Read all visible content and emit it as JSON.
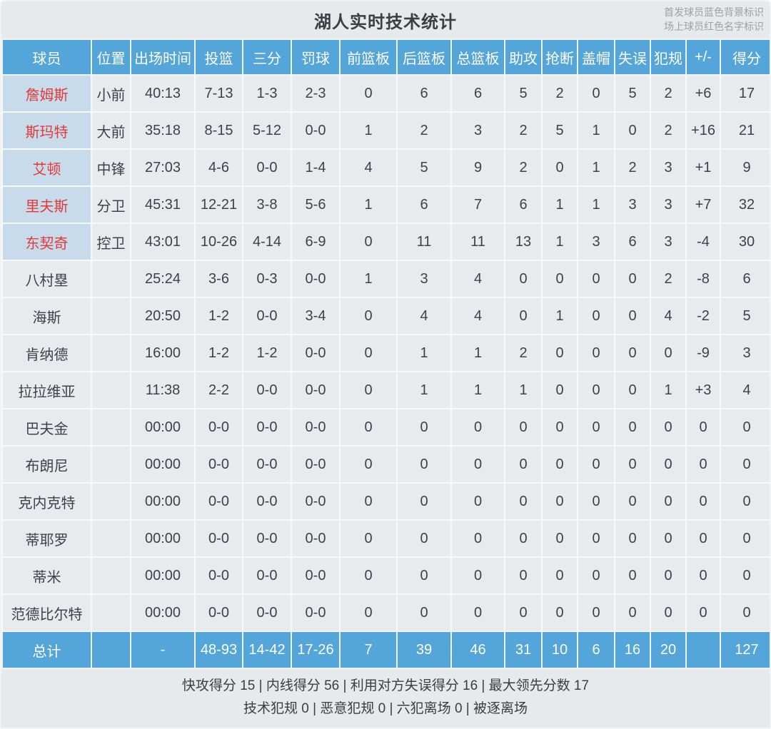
{
  "title": "湖人实时技术统计",
  "legend": {
    "line1": "首发球员蓝色背景标识",
    "line2": "场上球员红色名字标识"
  },
  "colors": {
    "header_blue": "#54a5da",
    "starter_name_bg": "#c7dbeb",
    "oncourt_name_red": "#e23a3a",
    "cell_bg": "#e8ebee",
    "page_bg": "#e7e9eb"
  },
  "table": {
    "columns": [
      {
        "key": "name",
        "label": "球员"
      },
      {
        "key": "pos",
        "label": "位置"
      },
      {
        "key": "time",
        "label": "出场时间"
      },
      {
        "key": "fg",
        "label": "投篮"
      },
      {
        "key": "tp",
        "label": "三分"
      },
      {
        "key": "ft",
        "label": "罚球"
      },
      {
        "key": "oreb",
        "label": "前篮板"
      },
      {
        "key": "dreb",
        "label": "后篮板"
      },
      {
        "key": "treb",
        "label": "总篮板"
      },
      {
        "key": "ast",
        "label": "助攻"
      },
      {
        "key": "stl",
        "label": "抢断"
      },
      {
        "key": "blk",
        "label": "盖帽"
      },
      {
        "key": "to",
        "label": "失误"
      },
      {
        "key": "pf",
        "label": "犯规"
      },
      {
        "key": "pm",
        "label": "+/-"
      },
      {
        "key": "pts",
        "label": "得分"
      }
    ],
    "players": [
      {
        "name": "詹姆斯",
        "pos": "小前",
        "time": "40:13",
        "fg": "7-13",
        "tp": "1-3",
        "ft": "2-3",
        "oreb": "0",
        "dreb": "6",
        "treb": "6",
        "ast": "5",
        "stl": "2",
        "blk": "0",
        "to": "5",
        "pf": "2",
        "pm": "+6",
        "pts": "17",
        "starter": true
      },
      {
        "name": "斯玛特",
        "pos": "大前",
        "time": "35:18",
        "fg": "8-15",
        "tp": "5-12",
        "ft": "0-0",
        "oreb": "1",
        "dreb": "2",
        "treb": "3",
        "ast": "2",
        "stl": "5",
        "blk": "1",
        "to": "0",
        "pf": "2",
        "pm": "+16",
        "pts": "21",
        "starter": true
      },
      {
        "name": "艾顿",
        "pos": "中锋",
        "time": "27:03",
        "fg": "4-6",
        "tp": "0-0",
        "ft": "1-4",
        "oreb": "4",
        "dreb": "5",
        "treb": "9",
        "ast": "2",
        "stl": "0",
        "blk": "1",
        "to": "2",
        "pf": "3",
        "pm": "+1",
        "pts": "9",
        "starter": true
      },
      {
        "name": "里夫斯",
        "pos": "分卫",
        "time": "45:31",
        "fg": "12-21",
        "tp": "3-8",
        "ft": "5-6",
        "oreb": "1",
        "dreb": "6",
        "treb": "7",
        "ast": "6",
        "stl": "1",
        "blk": "1",
        "to": "3",
        "pf": "3",
        "pm": "+7",
        "pts": "32",
        "starter": true
      },
      {
        "name": "东契奇",
        "pos": "控卫",
        "time": "43:01",
        "fg": "10-26",
        "tp": "4-14",
        "ft": "6-9",
        "oreb": "0",
        "dreb": "11",
        "treb": "11",
        "ast": "13",
        "stl": "1",
        "blk": "3",
        "to": "6",
        "pf": "3",
        "pm": "-4",
        "pts": "30",
        "starter": true
      },
      {
        "name": "八村塁",
        "pos": "",
        "time": "25:24",
        "fg": "3-6",
        "tp": "0-3",
        "ft": "0-0",
        "oreb": "1",
        "dreb": "3",
        "treb": "4",
        "ast": "0",
        "stl": "0",
        "blk": "0",
        "to": "0",
        "pf": "2",
        "pm": "-8",
        "pts": "6",
        "starter": false
      },
      {
        "name": "海斯",
        "pos": "",
        "time": "20:50",
        "fg": "1-2",
        "tp": "0-0",
        "ft": "3-4",
        "oreb": "0",
        "dreb": "4",
        "treb": "4",
        "ast": "0",
        "stl": "1",
        "blk": "0",
        "to": "0",
        "pf": "4",
        "pm": "-2",
        "pts": "5",
        "starter": false
      },
      {
        "name": "肯纳德",
        "pos": "",
        "time": "16:00",
        "fg": "1-2",
        "tp": "1-2",
        "ft": "0-0",
        "oreb": "0",
        "dreb": "1",
        "treb": "1",
        "ast": "2",
        "stl": "0",
        "blk": "0",
        "to": "0",
        "pf": "0",
        "pm": "-9",
        "pts": "3",
        "starter": false
      },
      {
        "name": "拉拉维亚",
        "pos": "",
        "time": "11:38",
        "fg": "2-2",
        "tp": "0-0",
        "ft": "0-0",
        "oreb": "0",
        "dreb": "1",
        "treb": "1",
        "ast": "1",
        "stl": "0",
        "blk": "0",
        "to": "0",
        "pf": "1",
        "pm": "+3",
        "pts": "4",
        "starter": false
      },
      {
        "name": "巴夫金",
        "pos": "",
        "time": "00:00",
        "fg": "0-0",
        "tp": "0-0",
        "ft": "0-0",
        "oreb": "0",
        "dreb": "0",
        "treb": "0",
        "ast": "0",
        "stl": "0",
        "blk": "0",
        "to": "0",
        "pf": "0",
        "pm": "0",
        "pts": "0",
        "starter": false
      },
      {
        "name": "布朗尼",
        "pos": "",
        "time": "00:00",
        "fg": "0-0",
        "tp": "0-0",
        "ft": "0-0",
        "oreb": "0",
        "dreb": "0",
        "treb": "0",
        "ast": "0",
        "stl": "0",
        "blk": "0",
        "to": "0",
        "pf": "0",
        "pm": "0",
        "pts": "0",
        "starter": false
      },
      {
        "name": "克内克特",
        "pos": "",
        "time": "00:00",
        "fg": "0-0",
        "tp": "0-0",
        "ft": "0-0",
        "oreb": "0",
        "dreb": "0",
        "treb": "0",
        "ast": "0",
        "stl": "0",
        "blk": "0",
        "to": "0",
        "pf": "0",
        "pm": "0",
        "pts": "0",
        "starter": false
      },
      {
        "name": "蒂耶罗",
        "pos": "",
        "time": "00:00",
        "fg": "0-0",
        "tp": "0-0",
        "ft": "0-0",
        "oreb": "0",
        "dreb": "0",
        "treb": "0",
        "ast": "0",
        "stl": "0",
        "blk": "0",
        "to": "0",
        "pf": "0",
        "pm": "0",
        "pts": "0",
        "starter": false
      },
      {
        "name": "蒂米",
        "pos": "",
        "time": "00:00",
        "fg": "0-0",
        "tp": "0-0",
        "ft": "0-0",
        "oreb": "0",
        "dreb": "0",
        "treb": "0",
        "ast": "0",
        "stl": "0",
        "blk": "0",
        "to": "0",
        "pf": "0",
        "pm": "0",
        "pts": "0",
        "starter": false
      },
      {
        "name": "范德比尔特",
        "pos": "",
        "time": "00:00",
        "fg": "0-0",
        "tp": "0-0",
        "ft": "0-0",
        "oreb": "0",
        "dreb": "0",
        "treb": "0",
        "ast": "0",
        "stl": "0",
        "blk": "0",
        "to": "0",
        "pf": "0",
        "pm": "0",
        "pts": "0",
        "starter": false
      }
    ],
    "totals": {
      "name": "总计",
      "pos": "",
      "time": "-",
      "fg": "48-93",
      "tp": "14-42",
      "ft": "17-26",
      "oreb": "7",
      "dreb": "39",
      "treb": "46",
      "ast": "31",
      "stl": "10",
      "blk": "6",
      "to": "16",
      "pf": "20",
      "pm": "",
      "pts": "127"
    }
  },
  "footer": {
    "line1": "快攻得分 15 | 内线得分 56 | 利用对方失误得分 16 | 最大领先分数 17",
    "line2": "技术犯规 0 | 恶意犯规 0 | 六犯离场 0 | 被逐离场"
  }
}
